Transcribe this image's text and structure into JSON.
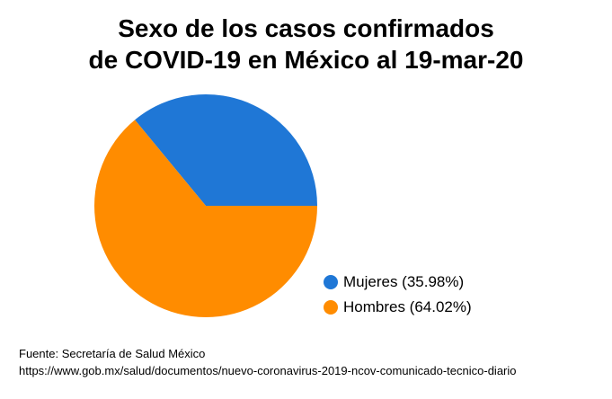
{
  "chart_data": {
    "type": "pie",
    "title": [
      "Sexo de los casos confirmados",
      "de COVID-19 en México al 19-mar-20"
    ],
    "slices": [
      {
        "label": "Mujeres",
        "value": 35.98,
        "legend_text": "Mujeres (35.98%)",
        "color": "#1f77d6"
      },
      {
        "label": "Hombres",
        "value": 64.02,
        "legend_text": "Hombres (64.02%)",
        "color": "#ff8c00"
      }
    ],
    "legend_placement": "bottom-right",
    "start": "3 o'clock",
    "direction": "counterclockwise"
  },
  "source": {
    "line1": "Fuente: Secretaría de Salud México",
    "line2": "https://www.gob.mx/salud/documentos/nuevo-coronavirus-2019-ncov-comunicado-tecnico-diario"
  }
}
